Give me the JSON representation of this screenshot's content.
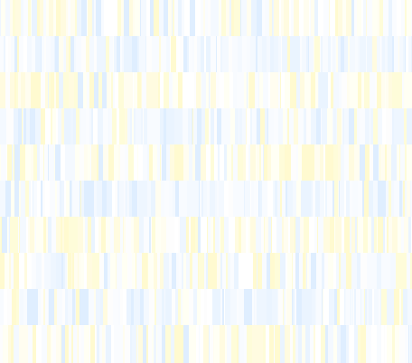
{
  "palette": {
    "background": "#fbfdff",
    "blue_tints": [
      "#f4f9ff",
      "#eaf4ff",
      "#dfeeff",
      "#f8fbff",
      "#eef6ff"
    ],
    "yellow_tints": [
      "#fffdf0",
      "#fffbe0",
      "#fffad0",
      "#fffff4",
      "#fefcd9"
    ],
    "neutral_tints": [
      "#ffffff",
      "#fdfdfd",
      "#fafcff"
    ]
  },
  "bands": [
    {
      "tone": "mixed-yellow"
    },
    {
      "tone": "blue"
    },
    {
      "tone": "yellow"
    },
    {
      "tone": "blue"
    },
    {
      "tone": "yellow"
    },
    {
      "tone": "blue"
    },
    {
      "tone": "yellow"
    },
    {
      "tone": "mixed-yellow"
    },
    {
      "tone": "blue"
    },
    {
      "tone": "mixed-yellow"
    }
  ]
}
